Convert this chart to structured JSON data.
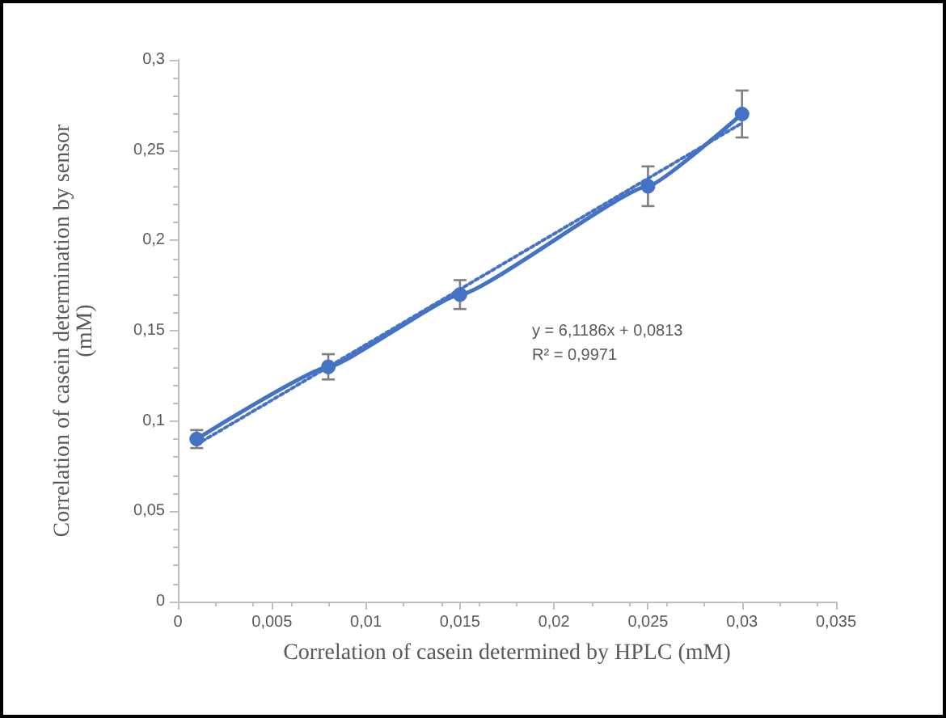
{
  "chart_data": {
    "type": "line",
    "xlabel": "Correlation of casein determined by HPLC (mM)",
    "ylabel": "Correlation of casein determination by sensor\n(mM)",
    "x": [
      0.001,
      0.008,
      0.015,
      0.025,
      0.03
    ],
    "series": [
      {
        "color": "#4472c4",
        "values": [
          0.09,
          0.13,
          0.17,
          0.23,
          0.27
        ],
        "errors": [
          0.005,
          0.007,
          0.008,
          0.011,
          0.013
        ],
        "marker": "circle",
        "line_style": "solid"
      },
      {
        "type": "line",
        "color": "#4472c4",
        "x": [
          0.001,
          0.03
        ],
        "values": [
          0.087,
          0.265
        ],
        "marker": "none",
        "line_style": "dotted"
      }
    ],
    "annotations": [
      "y = 6,1186x + 0,0813",
      "R² = 0,9971"
    ],
    "xlim": [
      0,
      0.035
    ],
    "xticks": [
      {
        "value": 0,
        "label": "0"
      },
      {
        "value": 0.005,
        "label": "0,005"
      },
      {
        "value": 0.01,
        "label": "0,01"
      },
      {
        "value": 0.015,
        "label": "0,015"
      },
      {
        "value": 0.02,
        "label": "0,02"
      },
      {
        "value": 0.025,
        "label": "0,025"
      },
      {
        "value": 0.03,
        "label": "0,03"
      },
      {
        "value": 0.035,
        "label": "0,035"
      }
    ],
    "ylim": [
      0,
      0.3
    ],
    "yticks": [
      {
        "value": 0,
        "label": "0"
      },
      {
        "value": 0.05,
        "label": "0,05"
      },
      {
        "value": 0.1,
        "label": "0,1"
      },
      {
        "value": 0.15,
        "label": "0,15"
      },
      {
        "value": 0.2,
        "label": "0,2"
      },
      {
        "value": 0.25,
        "label": "0,25"
      },
      {
        "value": 0.3,
        "label": "0,3"
      }
    ],
    "grid": false
  }
}
